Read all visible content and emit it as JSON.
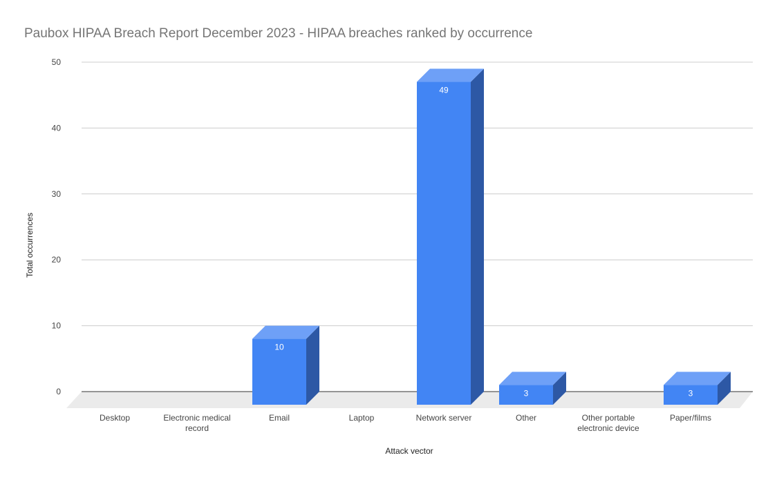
{
  "chart_data": {
    "type": "bar",
    "title": "Paubox HIPAA Breach Report December 2023 - HIPAA breaches ranked by occurrence",
    "xlabel": "Attack vector",
    "ylabel": "Total occurrences",
    "categories": [
      [
        "Desktop"
      ],
      [
        "Electronic medical",
        "record"
      ],
      [
        "Email"
      ],
      [
        "Laptop"
      ],
      [
        "Network server"
      ],
      [
        "Other"
      ],
      [
        "Other portable",
        "electronic device"
      ],
      [
        "Paper/films"
      ]
    ],
    "values": [
      0,
      0,
      10,
      0,
      49,
      3,
      0,
      3
    ],
    "data_labels": [
      "",
      "",
      "10",
      "",
      "49",
      "3",
      "",
      "3"
    ],
    "ylim": [
      0,
      50
    ],
    "yticks": [
      "0",
      "10",
      "20",
      "30",
      "40",
      "50"
    ],
    "grid": true,
    "style": "3d",
    "colors": {
      "bar_front": "#4285f4",
      "bar_top": "#6ea0f7",
      "bar_side": "#2d58a5",
      "floor": "#ebebeb",
      "gridline": "#cccccc"
    }
  }
}
